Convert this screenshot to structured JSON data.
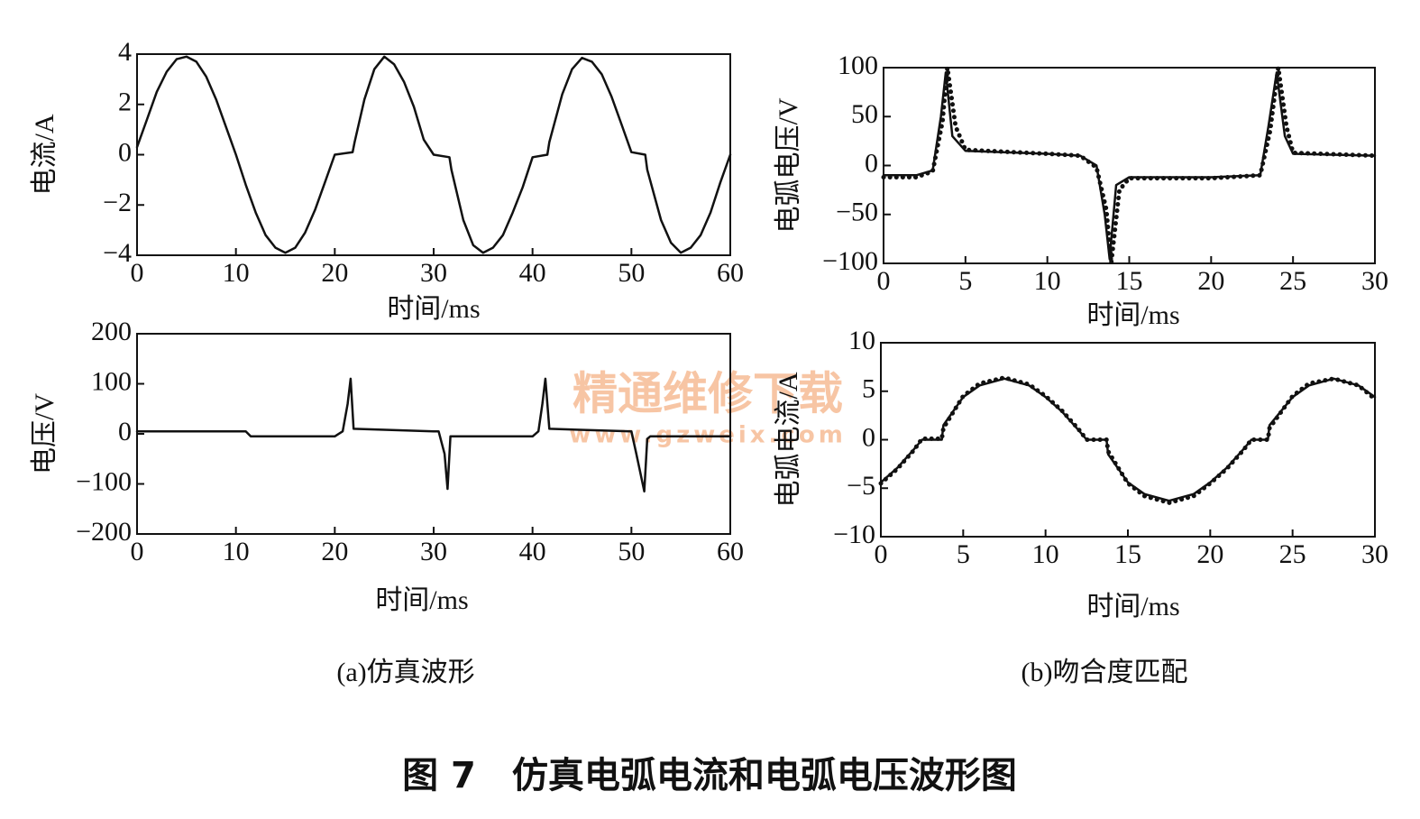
{
  "chart_data": [
    {
      "type": "line",
      "xlabel": "时间/ms",
      "ylabel": "电流/A",
      "xlim": [
        0,
        60
      ],
      "xticks": [
        0,
        10,
        20,
        30,
        40,
        50,
        60
      ],
      "ylim": [
        -4,
        4
      ],
      "yticks": [
        {
          "value": -4,
          "label": "−4"
        },
        {
          "value": -2,
          "label": "−2"
        },
        0,
        2,
        4
      ],
      "series": [
        {
          "color": "#111111",
          "style": "solid",
          "x": [
            0,
            1,
            2,
            3,
            4,
            5,
            6,
            7,
            8,
            9,
            10,
            11,
            12,
            13,
            14,
            15,
            16,
            17,
            18,
            19,
            20,
            21.8,
            22,
            23,
            24,
            25,
            26,
            27,
            28,
            29,
            30,
            31.6,
            31.8,
            33,
            34,
            35,
            36,
            37,
            38,
            39,
            40,
            41.5,
            41.7,
            43,
            44,
            45,
            46,
            47,
            48,
            49,
            50,
            51.4,
            51.6,
            53,
            54,
            55,
            56,
            57,
            58,
            59,
            60
          ],
          "values": [
            0.3,
            1.4,
            2.5,
            3.3,
            3.8,
            3.9,
            3.7,
            3.1,
            2.2,
            1.1,
            0,
            -1.2,
            -2.3,
            -3.2,
            -3.7,
            -3.9,
            -3.7,
            -3.1,
            -2.2,
            -1.1,
            0,
            0.1,
            0.5,
            2.2,
            3.4,
            3.9,
            3.6,
            2.9,
            1.9,
            0.6,
            0,
            -0.1,
            -0.6,
            -2.6,
            -3.6,
            -3.9,
            -3.7,
            -3.2,
            -2.3,
            -1.3,
            -0.1,
            0,
            0.5,
            2.4,
            3.4,
            3.85,
            3.7,
            3.2,
            2.3,
            1.2,
            0.1,
            0,
            -0.6,
            -2.6,
            -3.5,
            -3.9,
            -3.7,
            -3.2,
            -2.3,
            -1.1,
            0
          ]
        }
      ]
    },
    {
      "type": "line",
      "xlabel": "时间/ms",
      "ylabel": "电压/V",
      "xlim": [
        0,
        60
      ],
      "xticks": [
        0,
        10,
        20,
        30,
        40,
        50,
        60
      ],
      "ylim": [
        -200,
        200
      ],
      "yticks": [
        {
          "value": -200,
          "label": "−200"
        },
        {
          "value": -100,
          "label": "−100"
        },
        0,
        100,
        200
      ],
      "series": [
        {
          "color": "#111111",
          "style": "solid",
          "x": [
            0,
            11,
            11.5,
            20,
            20.8,
            21.3,
            21.6,
            21.9,
            30,
            30.5,
            31.1,
            31.4,
            31.7,
            40,
            40.6,
            41.0,
            41.3,
            41.7,
            50,
            50.5,
            51.3,
            51.6,
            51.9,
            60
          ],
          "values": [
            5,
            5,
            -5,
            -5,
            5,
            60,
            110,
            10,
            5,
            5,
            -40,
            -110,
            -5,
            -5,
            5,
            60,
            110,
            10,
            5,
            -40,
            -115,
            -10,
            -5,
            -5
          ]
        }
      ]
    },
    {
      "type": "line",
      "xlabel": "时间/ms",
      "ylabel": "电弧电压/V",
      "xlim": [
        0,
        30
      ],
      "xticks": [
        0,
        5,
        10,
        15,
        20,
        25,
        30
      ],
      "ylim": [
        -100,
        100
      ],
      "yticks": [
        {
          "value": -100,
          "label": "−100"
        },
        {
          "value": -50,
          "label": "−50"
        },
        0,
        50,
        100
      ],
      "series": [
        {
          "color": "#111111",
          "style": "solid",
          "x": [
            0,
            2,
            3,
            3.5,
            3.8,
            4.2,
            5,
            10,
            12,
            13,
            13.5,
            13.8,
            14.2,
            15,
            20,
            23,
            23.5,
            24,
            24.5,
            25,
            30
          ],
          "values": [
            -10,
            -10,
            -5,
            50,
            95,
            30,
            15,
            12,
            10,
            0,
            -50,
            -95,
            -20,
            -12,
            -12,
            -10,
            40,
            95,
            30,
            12,
            10
          ]
        },
        {
          "color": "#111111",
          "style": "dotted",
          "x": [
            0,
            2,
            3,
            3.6,
            3.9,
            4.4,
            5,
            10,
            12,
            13,
            13.6,
            13.9,
            14.4,
            15,
            20,
            23,
            23.6,
            24.1,
            24.6,
            25,
            30
          ],
          "values": [
            -12,
            -12,
            -6,
            45,
            100,
            40,
            16,
            12,
            10,
            -2,
            -45,
            -100,
            -25,
            -13,
            -13,
            -10,
            35,
            100,
            40,
            13,
            10
          ]
        }
      ]
    },
    {
      "type": "line",
      "xlabel": "时间/ms",
      "ylabel": "电弧电流/A",
      "xlim": [
        0,
        30
      ],
      "xticks": [
        0,
        5,
        10,
        15,
        20,
        25,
        30
      ],
      "ylim": [
        -10,
        10
      ],
      "yticks": [
        {
          "value": -10,
          "label": "−10"
        },
        {
          "value": -5,
          "label": "−5"
        },
        0,
        5,
        10
      ],
      "series": [
        {
          "color": "#111111",
          "style": "solid",
          "x": [
            0,
            1,
            2,
            2.5,
            3.7,
            3.8,
            5,
            6,
            7.5,
            9,
            10,
            11,
            12,
            12.5,
            13.7,
            13.8,
            15,
            16,
            17.5,
            19,
            20,
            21,
            22,
            22.5,
            23.5,
            23.6,
            25,
            26,
            27.5,
            29,
            30
          ],
          "values": [
            -4.4,
            -2.9,
            -1,
            0,
            0,
            1.5,
            4.4,
            5.6,
            6.3,
            5.6,
            4.4,
            2.9,
            1,
            0,
            0,
            -1.5,
            -4.4,
            -5.6,
            -6.3,
            -5.6,
            -4.4,
            -2.9,
            -1,
            0,
            0,
            1.5,
            4.4,
            5.6,
            6.3,
            5.6,
            4.4
          ]
        },
        {
          "color": "#111111",
          "style": "dotted",
          "x": [
            0,
            1,
            2,
            2.5,
            3.7,
            3.8,
            5,
            6,
            7.5,
            9,
            10,
            11,
            12,
            12.5,
            13.7,
            13.8,
            15,
            16,
            17.5,
            19,
            20,
            21,
            22,
            22.5,
            23.5,
            23.6,
            25,
            26,
            27.5,
            29,
            30
          ],
          "values": [
            -4.5,
            -3,
            -1.1,
            0.1,
            0.1,
            1.2,
            4.5,
            5.8,
            6.4,
            5.7,
            4.5,
            3,
            1.1,
            0,
            0,
            -1.2,
            -4.5,
            -5.8,
            -6.5,
            -5.8,
            -4.5,
            -3,
            -1.1,
            0,
            0,
            1.2,
            4.5,
            5.8,
            6.3,
            5.6,
            4.2
          ]
        }
      ]
    }
  ],
  "subcaptions": [
    "(a)仿真波形",
    "(b)吻合度匹配"
  ],
  "figure_caption": "图 7　仿真电弧电流和电弧电压波形图",
  "watermark": {
    "title": "精通维修下载",
    "url": "www.gzweix.com"
  }
}
